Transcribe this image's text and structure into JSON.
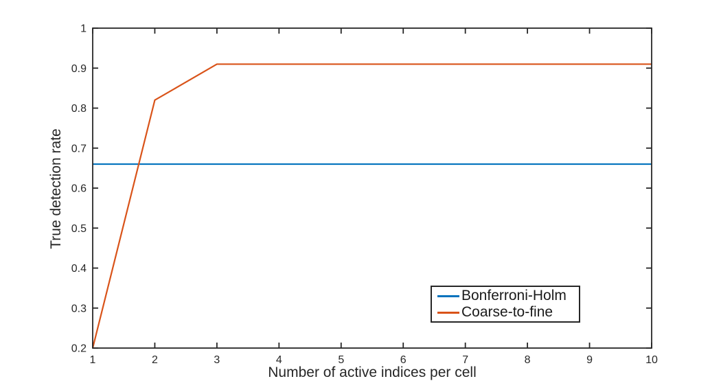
{
  "chart_data": {
    "type": "line",
    "title": "",
    "xlabel": "Number of active indices per cell",
    "ylabel": "True detection rate",
    "x": [
      1,
      2,
      3,
      4,
      5,
      6,
      7,
      8,
      9,
      10
    ],
    "series": [
      {
        "name": "Bonferroni-Holm",
        "color": "#0072BD",
        "values": [
          0.66,
          0.66,
          0.66,
          0.66,
          0.66,
          0.66,
          0.66,
          0.66,
          0.66,
          0.66
        ]
      },
      {
        "name": "Coarse-to-fine",
        "color": "#D95319",
        "values": [
          0.2,
          0.82,
          0.91,
          0.91,
          0.91,
          0.91,
          0.91,
          0.91,
          0.91,
          0.91
        ]
      }
    ],
    "xlim": [
      1,
      10
    ],
    "ylim": [
      0.2,
      1
    ],
    "xticks": [
      1,
      2,
      3,
      4,
      5,
      6,
      7,
      8,
      9,
      10
    ],
    "xtick_labels": [
      "1",
      "2",
      "3",
      "4",
      "5",
      "6",
      "7",
      "8",
      "9",
      "10"
    ],
    "yticks": [
      0.2,
      0.3,
      0.4,
      0.5,
      0.6,
      0.7,
      0.8,
      0.9,
      1
    ],
    "ytick_labels": [
      "0.2",
      "0.3",
      "0.4",
      "0.5",
      "0.6",
      "0.7",
      "0.8",
      "0.9",
      "1"
    ],
    "grid": false,
    "legend_position": "lower-right-inside",
    "axis_color": "#262626",
    "text_color": "#262626",
    "plot_background": "#ffffff"
  }
}
